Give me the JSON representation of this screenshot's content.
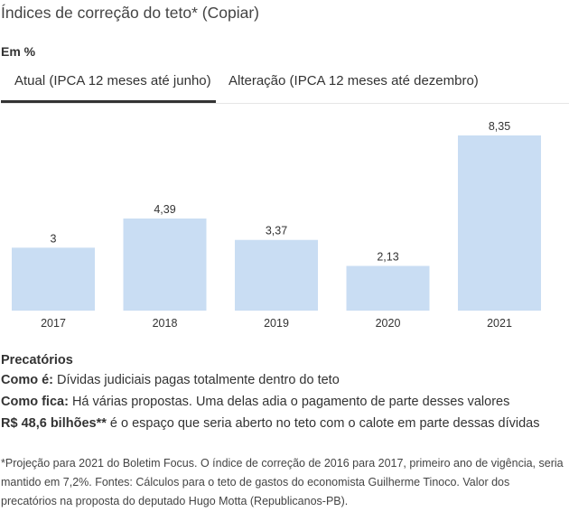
{
  "header": {
    "title": "Índices de correção do teto* (Copiar)",
    "unit": "Em %"
  },
  "tabs": [
    {
      "label": "Atual (IPCA 12 meses até junho)",
      "active": true
    },
    {
      "label": "Alteração (IPCA 12 meses até dezembro)",
      "active": false
    }
  ],
  "chart_data": {
    "type": "bar",
    "categories": [
      "2017",
      "2018",
      "2019",
      "2020",
      "2021"
    ],
    "values": [
      3,
      4.39,
      3.37,
      2.13,
      8.35
    ],
    "value_labels": [
      "3",
      "4,39",
      "3,37",
      "2,13",
      "8,35"
    ],
    "ylim": [
      0,
      8.35
    ],
    "grid": false,
    "bar_color": "#c9ddf3"
  },
  "notes": {
    "heading": "Precatórios",
    "como_e_label": "Como é:",
    "como_e_text": " Dívidas judiciais pagas totalmente dentro do teto",
    "como_fica_label": "Como fica:",
    "como_fica_text": " Há várias propostas. Uma delas adia o pagamento de parte desses valores",
    "valor_label": "R$ 48,6 bilhões**",
    "valor_text": " é o espaço que seria aberto no teto com o calote em parte dessas dívidas"
  },
  "footnote": "*Projeção para 2021 do Boletim Focus. O índice de correção de 2016 para 2017, primeiro ano de vigência, seria mantido em 7,2%. Fontes: Cálculos para o teto de gastos do economista Guilherme Tinoco. Valor dos precatórios na proposta do deputado Hugo Motta (Republicanos-PB)."
}
